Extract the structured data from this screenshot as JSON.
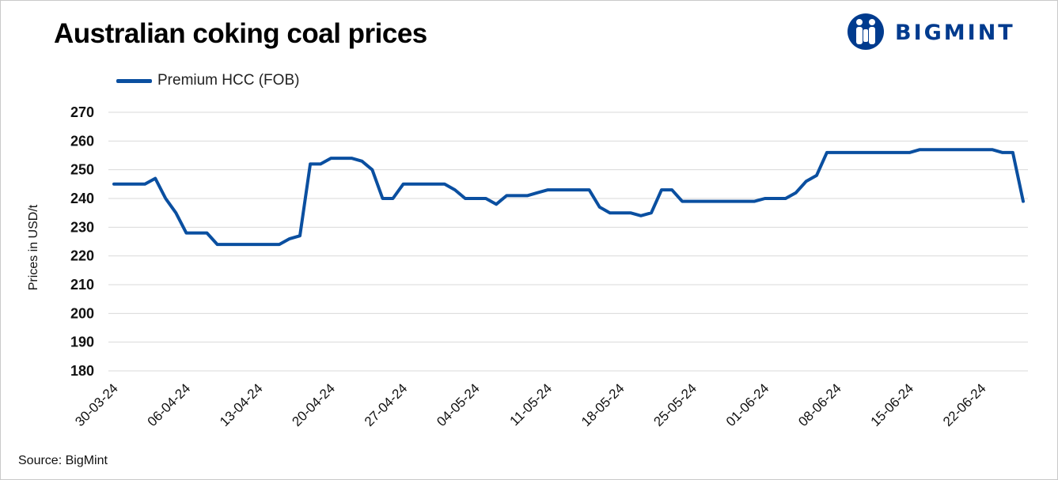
{
  "brand": {
    "name": "BIGMINT",
    "color": "#003b8e"
  },
  "source": "Source: BigMint",
  "chart_data": {
    "type": "line",
    "title": "Australian coking coal prices",
    "xlabel": "",
    "ylabel": "Prices in USD/t",
    "ylim": [
      180,
      270
    ],
    "yticks": [
      270,
      260,
      250,
      240,
      230,
      220,
      210,
      200,
      190,
      180
    ],
    "grid": true,
    "legend_position": "top-left",
    "x_tick_labels": [
      "30-03-24",
      "06-04-24",
      "13-04-24",
      "20-04-24",
      "27-04-24",
      "04-05-24",
      "11-05-24",
      "18-05-24",
      "25-05-24",
      "01-06-24",
      "08-06-24",
      "15-06-24",
      "22-06-24"
    ],
    "series": [
      {
        "name": "Premium HCC (FOB)",
        "color": "#0a4fa0",
        "values": [
          245,
          245,
          245,
          245,
          247,
          240,
          235,
          228,
          228,
          228,
          224,
          224,
          224,
          224,
          224,
          224,
          224,
          226,
          227,
          252,
          252,
          254,
          254,
          254,
          253,
          250,
          240,
          240,
          245,
          245,
          245,
          245,
          245,
          243,
          240,
          240,
          240,
          238,
          241,
          241,
          241,
          242,
          243,
          243,
          243,
          243,
          243,
          237,
          235,
          235,
          235,
          234,
          235,
          243,
          243,
          239,
          239,
          239,
          239,
          239,
          239,
          239,
          239,
          240,
          240,
          240,
          242,
          246,
          248,
          256,
          256,
          256,
          256,
          256,
          256,
          256,
          256,
          256,
          257,
          257,
          257,
          257,
          257,
          257,
          257,
          257,
          256,
          256,
          239
        ]
      }
    ]
  }
}
